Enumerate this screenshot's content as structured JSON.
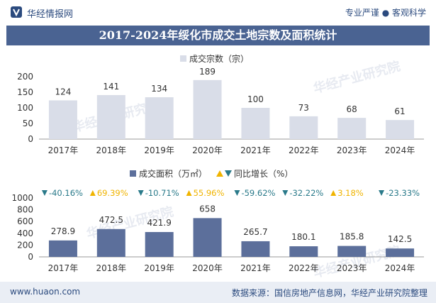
{
  "header": {
    "brand": "华经情报网",
    "slogan": "专业严谨 ● 客观科学"
  },
  "title": "2017-2024年绥化市成交土地宗数及面积统计",
  "footer": {
    "site": "www.huaon.com",
    "source": "数据来源：国信房地产信息网，华经产业研究院整理"
  },
  "watermark": "华经产业研究院",
  "colors": {
    "count_bar": "#d9dde8",
    "area_bar": "#5c6f9b",
    "down": "#2a7a8a",
    "up": "#f0b400",
    "header_bg": "#4a6392"
  },
  "chart_data": [
    {
      "type": "bar",
      "categories": [
        "2017年",
        "2018年",
        "2019年",
        "2020年",
        "2021年",
        "2022年",
        "2023年",
        "2024年"
      ],
      "series": [
        {
          "name": "成交宗数（宗）",
          "values": [
            124,
            141,
            134,
            189,
            100,
            73,
            68,
            61
          ]
        }
      ],
      "ylim": [
        0,
        200
      ],
      "yticks": [
        "0",
        "50",
        "100",
        "150",
        "200"
      ],
      "legend": "top-center"
    },
    {
      "type": "bar",
      "categories": [
        "2017年",
        "2018年",
        "2019年",
        "2020年",
        "2021年",
        "2022年",
        "2023年",
        "2024年"
      ],
      "series": [
        {
          "name": "成交面积（万㎡）",
          "values": [
            278.9,
            472.5,
            421.9,
            658,
            265.7,
            180.1,
            185.8,
            142.5
          ]
        },
        {
          "name": "同比增长（%）",
          "labels": [
            "-40.16%",
            "69.39%",
            "-10.71%",
            "55.96%",
            "-59.62%",
            "-32.22%",
            "3.18%",
            "-23.33%"
          ],
          "values": [
            -40.16,
            69.39,
            -10.71,
            55.96,
            -59.62,
            -32.22,
            3.18,
            -23.33
          ]
        }
      ],
      "ylim": [
        0,
        1000
      ],
      "yticks": [
        "0",
        "200",
        "400",
        "600",
        "800",
        "1000"
      ],
      "legend": "top-center"
    }
  ]
}
